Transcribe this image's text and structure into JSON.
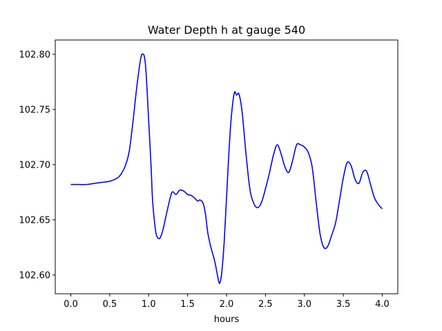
{
  "chart_data": {
    "type": "line",
    "title": "Water Depth h at gauge 540",
    "xlabel": "hours",
    "ylabel": "",
    "xlim": [
      -0.2,
      4.2
    ],
    "ylim": [
      102.583,
      102.813
    ],
    "xticks": [
      0.0,
      0.5,
      1.0,
      1.5,
      2.0,
      2.5,
      3.0,
      3.5,
      4.0
    ],
    "xtick_labels": [
      "0.0",
      "0.5",
      "1.0",
      "1.5",
      "2.0",
      "2.5",
      "3.0",
      "3.5",
      "4.0"
    ],
    "yticks": [
      102.6,
      102.65,
      102.7,
      102.75,
      102.8
    ],
    "ytick_labels": [
      "102.60",
      "102.65",
      "102.70",
      "102.75",
      "102.80"
    ],
    "grid": false,
    "series": [
      {
        "color": "#0000ff",
        "x": [
          0.0,
          0.1,
          0.2,
          0.3,
          0.4,
          0.5,
          0.6,
          0.65,
          0.7,
          0.75,
          0.8,
          0.85,
          0.9,
          0.93,
          0.95,
          0.97,
          1.0,
          1.03,
          1.05,
          1.08,
          1.1,
          1.13,
          1.15,
          1.18,
          1.2,
          1.25,
          1.3,
          1.35,
          1.4,
          1.45,
          1.5,
          1.55,
          1.6,
          1.63,
          1.66,
          1.7,
          1.73,
          1.76,
          1.8,
          1.85,
          1.9,
          1.92,
          1.94,
          1.97,
          2.0,
          2.03,
          2.06,
          2.1,
          2.13,
          2.16,
          2.2,
          2.25,
          2.3,
          2.35,
          2.4,
          2.45,
          2.5,
          2.55,
          2.6,
          2.65,
          2.7,
          2.75,
          2.8,
          2.85,
          2.9,
          2.95,
          3.0,
          3.05,
          3.1,
          3.15,
          3.2,
          3.25,
          3.3,
          3.35,
          3.4,
          3.45,
          3.5,
          3.55,
          3.6,
          3.65,
          3.7,
          3.75,
          3.8,
          3.85,
          3.9,
          3.95,
          4.0
        ],
        "y": [
          102.682,
          102.682,
          102.682,
          102.683,
          102.684,
          102.685,
          102.688,
          102.692,
          102.699,
          102.712,
          102.74,
          102.772,
          102.797,
          102.8,
          102.796,
          102.78,
          102.74,
          102.7,
          102.668,
          102.645,
          102.636,
          102.633,
          102.634,
          102.64,
          102.646,
          102.662,
          102.675,
          102.673,
          102.677,
          102.676,
          102.673,
          102.672,
          102.669,
          102.667,
          102.668,
          102.665,
          102.655,
          102.638,
          102.625,
          102.612,
          102.594,
          102.594,
          102.603,
          102.63,
          102.67,
          102.71,
          102.742,
          102.765,
          102.763,
          102.764,
          102.748,
          102.71,
          102.678,
          102.665,
          102.661,
          102.666,
          102.678,
          102.692,
          102.708,
          102.718,
          102.71,
          102.698,
          102.693,
          102.704,
          102.718,
          102.718,
          102.716,
          102.711,
          102.698,
          102.667,
          102.638,
          102.625,
          102.626,
          102.636,
          102.647,
          102.667,
          102.688,
          102.702,
          102.699,
          102.687,
          102.683,
          102.693,
          102.694,
          102.682,
          102.67,
          102.664,
          102.66
        ]
      }
    ]
  }
}
